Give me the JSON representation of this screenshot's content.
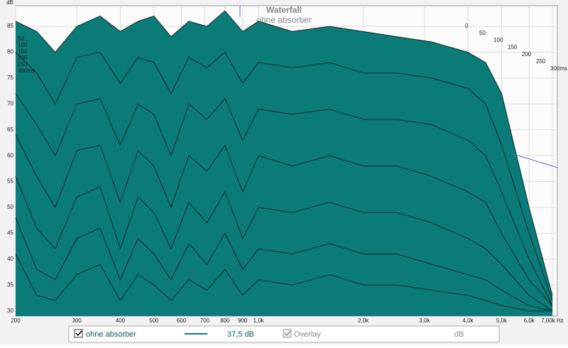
{
  "chart_data": {
    "type": "waterfall",
    "title": "Waterfall",
    "subtitle": "ohne absorber",
    "y_label": "dB",
    "x": [
      200,
      230,
      260,
      300,
      350,
      400,
      450,
      500,
      560,
      630,
      710,
      800,
      900,
      1000,
      1250,
      1600,
      2000,
      2500,
      3150,
      4000,
      4500,
      5000,
      6000,
      7000
    ],
    "slices": [
      {
        "time": 0,
        "values": [
          86,
          84,
          80,
          85,
          87,
          84,
          86,
          87,
          83,
          86,
          85,
          88,
          84,
          86,
          84,
          85,
          84,
          83,
          82,
          80,
          78,
          72,
          50,
          33
        ]
      },
      {
        "time": 50,
        "values": [
          80,
          76,
          70,
          79,
          80,
          74,
          79,
          78,
          72,
          79,
          77,
          80,
          74,
          78,
          77,
          78,
          76,
          76,
          75,
          73,
          70,
          62,
          45,
          32
        ]
      },
      {
        "time": 100,
        "values": [
          72,
          66,
          60,
          70,
          71,
          62,
          70,
          68,
          60,
          70,
          67,
          71,
          63,
          69,
          68,
          69,
          67,
          67,
          66,
          63,
          60,
          53,
          40,
          31
        ]
      },
      {
        "time": 150,
        "values": [
          64,
          56,
          50,
          61,
          62,
          51,
          61,
          58,
          50,
          60,
          57,
          62,
          53,
          60,
          58,
          60,
          58,
          58,
          56,
          53,
          51,
          45,
          36,
          31
        ]
      },
      {
        "time": 200,
        "values": [
          56,
          46,
          42,
          52,
          54,
          42,
          52,
          49,
          42,
          51,
          47,
          53,
          44,
          50,
          49,
          51,
          49,
          49,
          47,
          44,
          42,
          39,
          33,
          30
        ]
      },
      {
        "time": 250,
        "values": [
          48,
          38,
          36,
          44,
          46,
          36,
          44,
          41,
          36,
          43,
          39,
          45,
          38,
          42,
          41,
          43,
          41,
          41,
          39,
          37,
          36,
          34,
          31,
          30
        ]
      },
      {
        "time": 300,
        "values": [
          41,
          33,
          32,
          37,
          39,
          32,
          37,
          35,
          32,
          36,
          34,
          38,
          33,
          36,
          35,
          37,
          35,
          35,
          34,
          33,
          32,
          31,
          30,
          30
        ]
      }
    ],
    "color": "#0b7b78",
    "log_x": true,
    "grid": true,
    "xlim": [
      200,
      7000
    ],
    "ylim": [
      29,
      89
    ],
    "xticks": [
      200,
      300,
      400,
      500,
      600,
      700,
      800,
      900,
      {
        "value": 1000,
        "label": "1,0k"
      },
      {
        "value": 2000,
        "label": "2,0k"
      },
      {
        "value": 3000,
        "label": "3,0k"
      },
      {
        "value": 4000,
        "label": "4,0k"
      },
      {
        "value": 5000,
        "label": "5,0k"
      },
      {
        "value": 6000,
        "label": "6,0k"
      },
      {
        "value": 7000,
        "label": "7,00k Hz"
      }
    ],
    "yticks": [
      30,
      35,
      40,
      45,
      50,
      55,
      60,
      65,
      70,
      75,
      80,
      85
    ],
    "zticks": [
      0,
      50,
      100,
      150,
      200,
      250,
      {
        "value": 300,
        "label": "300ms"
      }
    ],
    "legend": {
      "name": "ohne absorber",
      "level": {
        "value": 37.5,
        "label": "37,5 dB"
      },
      "overlay": "Overlay",
      "unit": "dB"
    }
  }
}
